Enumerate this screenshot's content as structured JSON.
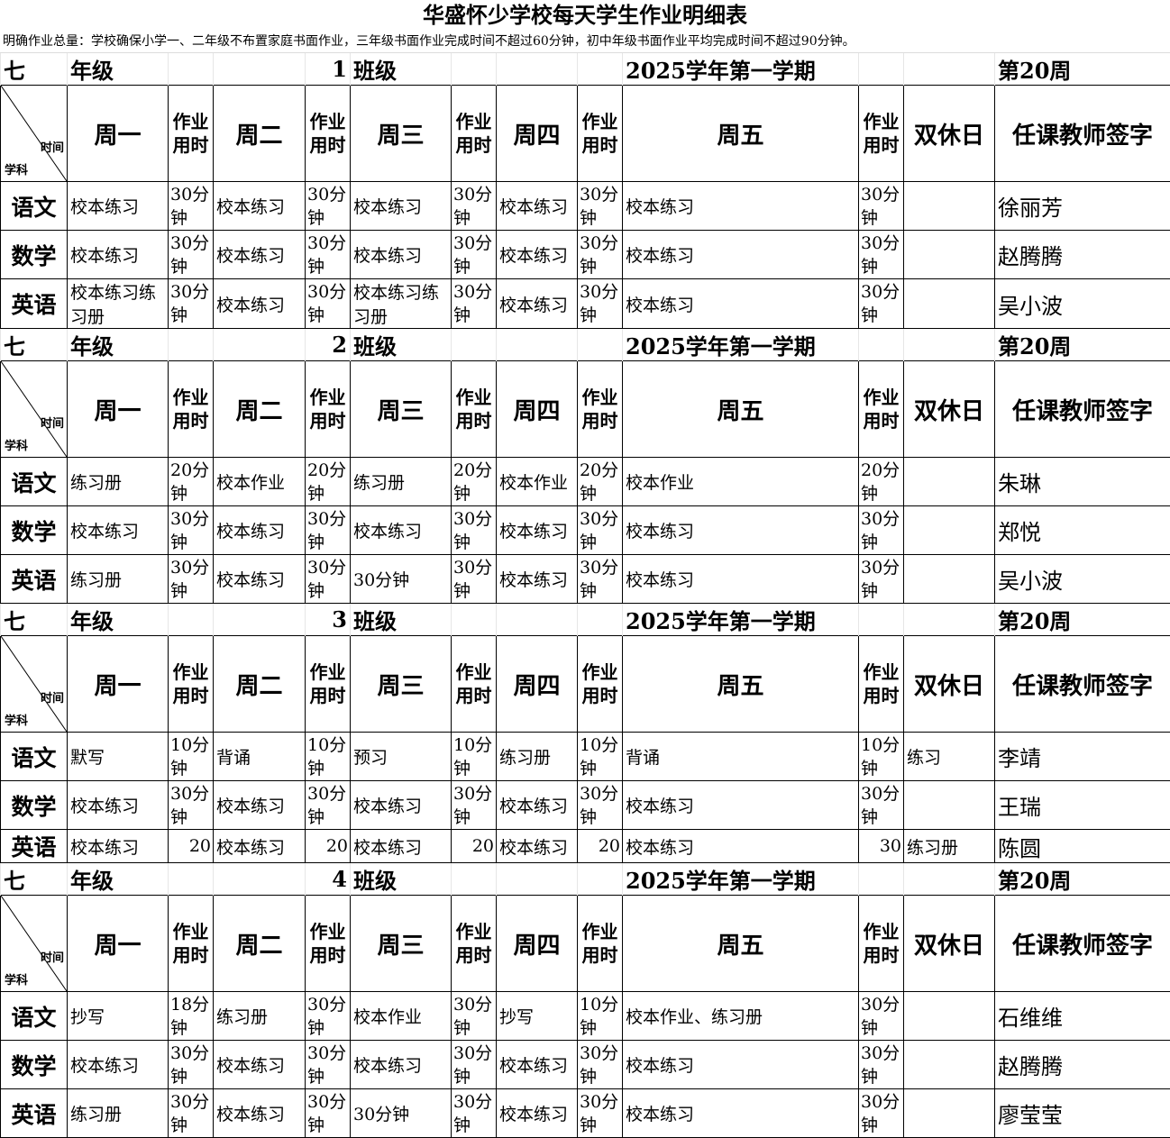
{
  "title": "华盛怀少学校每天学生作业明细表",
  "note": "明确作业总量：学校确保小学一、二年级不布置家庭书面作业，三年级书面作业完成时间不超过60分钟，初中年级书面作业平均完成时间不超过90分钟。",
  "headers": {
    "time_label": "时间",
    "subject_label": "学科",
    "days": [
      "周一",
      "周二",
      "周三",
      "周四",
      "周五"
    ],
    "time_col": "作业用时",
    "weekend": "双休日",
    "teacher": "任课教师签字"
  },
  "blocks": [
    {
      "grade": "七",
      "grade_label": "年级",
      "class_no": "1",
      "class_label": "班级",
      "term": "2025学年第一学期",
      "week": "第20周",
      "rows": [
        [
          "语文",
          "校本练习",
          "30分钟",
          "校本练习",
          "30分钟",
          "校本练习",
          "30分钟",
          "校本练习",
          "30分钟",
          "校本练习",
          "30分钟",
          "",
          "徐丽芳"
        ],
        [
          "数学",
          "校本练习",
          "30分钟",
          "校本练习",
          "30分钟",
          "校本练习",
          "30分钟",
          "校本练习",
          "30分钟",
          "校本练习",
          "30分钟",
          "",
          "赵腾腾"
        ],
        [
          "英语",
          "校本练习练习册",
          "30分钟",
          "校本练习",
          "30分钟",
          "校本练习练习册",
          "30分钟",
          "校本练习",
          "30分钟",
          "校本练习",
          "30分钟",
          "",
          "吴小波"
        ]
      ]
    },
    {
      "grade": "七",
      "grade_label": "年级",
      "class_no": "2",
      "class_label": "班级",
      "term": "2025学年第一学期",
      "week": "第20周",
      "rows": [
        [
          "语文",
          "练习册",
          "20分钟",
          "校本作业",
          "20分钟",
          "练习册",
          "20分钟",
          "校本作业",
          "20分钟",
          "校本作业",
          "20分钟",
          "",
          "朱琳"
        ],
        [
          "数学",
          "校本练习",
          "30分钟",
          "校本练习",
          "30分钟",
          "校本练习",
          "30分钟",
          "校本练习",
          "30分钟",
          "校本练习",
          "30分钟",
          "",
          "郑悦"
        ],
        [
          "英语",
          "练习册",
          "30分钟",
          "校本练习",
          "30分钟",
          "30分钟",
          "30分钟",
          "校本练习",
          "30分钟",
          "校本练习",
          "30分钟",
          "",
          "吴小波"
        ]
      ]
    },
    {
      "grade": "七",
      "grade_label": "年级",
      "class_no": "3",
      "class_label": "班级",
      "term": "2025学年第一学期",
      "week": "第20周",
      "rows": [
        [
          "语文",
          "默写",
          "10分钟",
          "背诵",
          "10分钟",
          "预习",
          "10分钟",
          "练习册",
          "10分钟",
          "背诵",
          "10分钟",
          "练习",
          "李靖"
        ],
        [
          "数学",
          "校本练习",
          "30分钟",
          "校本练习",
          "30分钟",
          "校本练习",
          "30分钟",
          "校本练习",
          "30分钟",
          "校本练习",
          "30分钟",
          "",
          "王瑞"
        ],
        [
          "英语",
          "校本练习",
          "20",
          "校本练习",
          "20",
          "校本练习",
          "20",
          "校本练习",
          "20",
          "校本练习",
          "30",
          "练习册",
          "陈圆"
        ]
      ]
    },
    {
      "grade": "七",
      "grade_label": "年级",
      "class_no": "4",
      "class_label": "班级",
      "term": "2025学年第一学期",
      "week": "第20周",
      "rows": [
        [
          "语文",
          "抄写",
          "18分钟",
          "练习册",
          "30分钟",
          "校本作业",
          "30分钟",
          "抄写",
          "10分钟",
          "校本作业、练习册",
          "30分钟",
          "",
          "石维维"
        ],
        [
          "数学",
          "校本练习",
          "30分钟",
          "校本练习",
          "30分钟",
          "校本练习",
          "30分钟",
          "校本练习",
          "30分钟",
          "校本练习",
          "30分钟",
          "",
          "赵腾腾"
        ],
        [
          "英语",
          "练习册",
          "30分钟",
          "校本练习",
          "30分钟",
          "30分钟",
          "30分钟",
          "校本练习",
          "30分钟",
          "校本练习",
          "30分钟",
          "",
          "廖莹莹"
        ]
      ]
    }
  ]
}
